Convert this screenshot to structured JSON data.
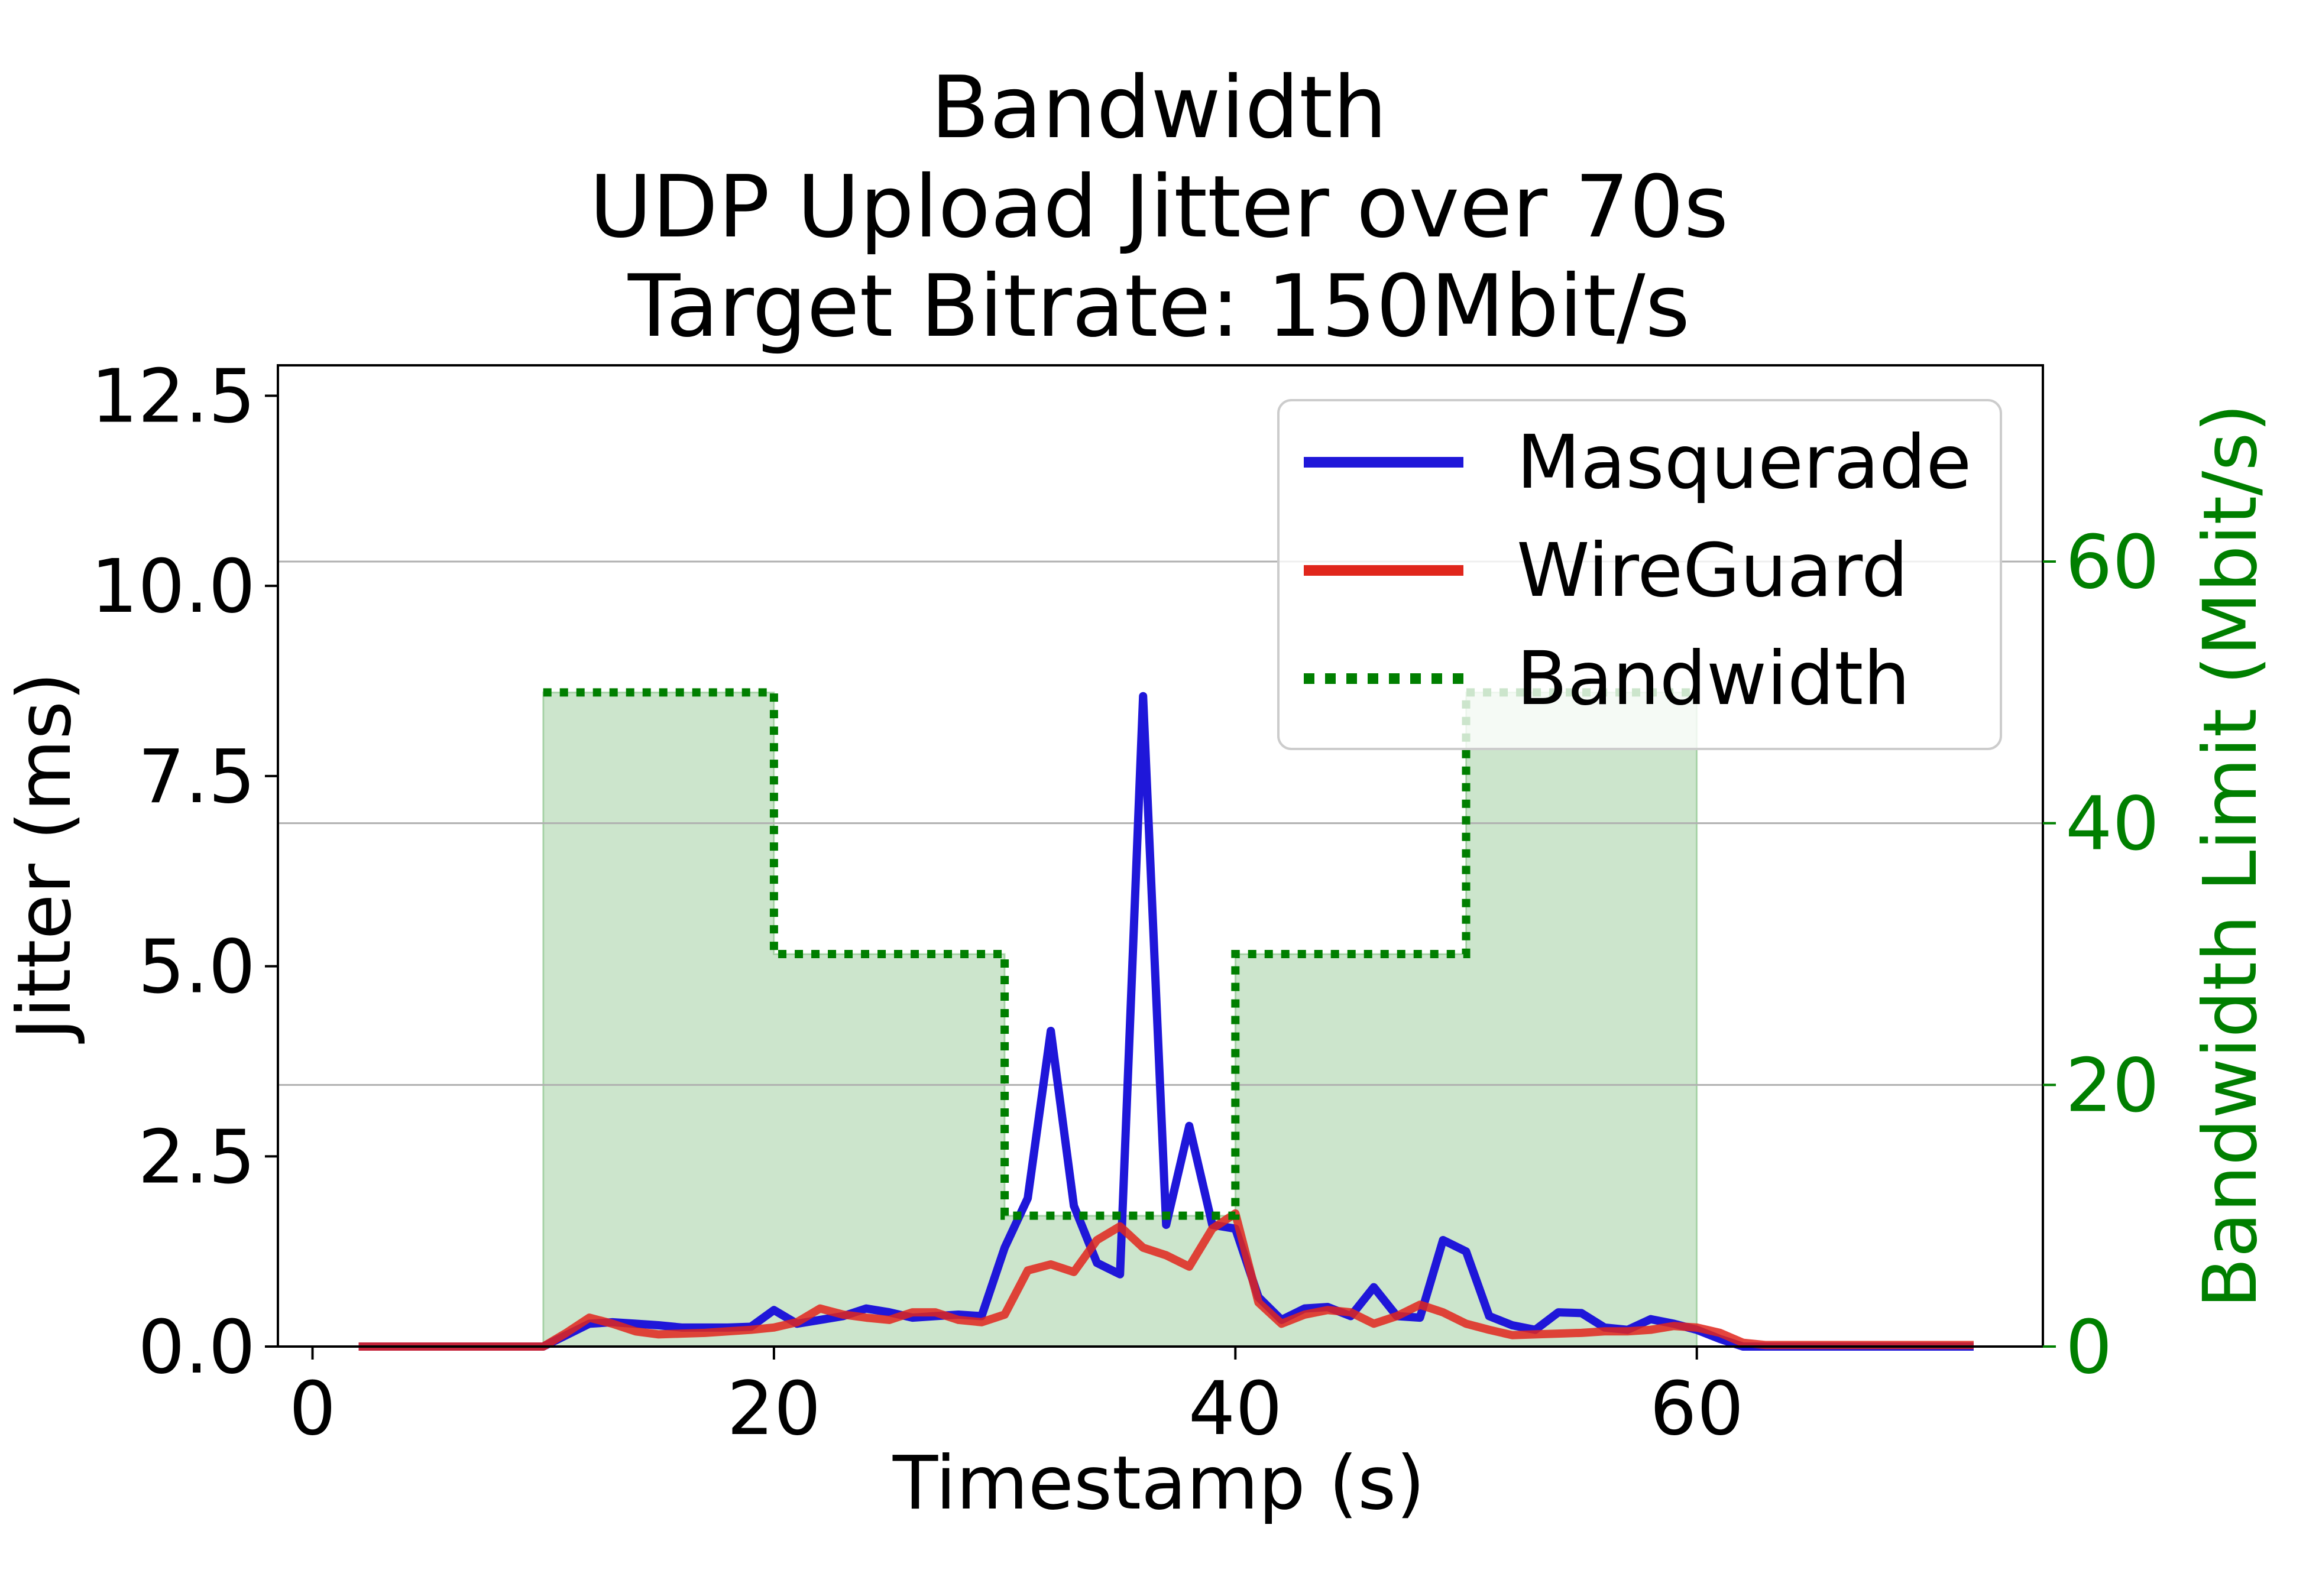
{
  "chart_data": {
    "type": "line",
    "title": [
      "Bandwidth",
      "UDP Upload Jitter over 70s",
      "Target Bitrate: 150Mbit/s"
    ],
    "xlabel": "Timestamp (s)",
    "ylabel": "Jitter (ms)",
    "y2label": "Bandwidth Limit (Mbit/s)",
    "xlim": [
      -1.5,
      75
    ],
    "ylim": [
      0,
      12.9
    ],
    "y2lim": [
      0,
      75
    ],
    "x_ticks": [
      0,
      20,
      40,
      60
    ],
    "y_ticks": [
      0.0,
      2.5,
      5.0,
      7.5,
      10.0,
      12.5
    ],
    "y_tick_labels": [
      "0.0",
      "2.5",
      "5.0",
      "7.5",
      "10.0",
      "12.5"
    ],
    "y2_ticks": [
      0,
      20,
      40,
      60
    ],
    "grid": "y2 major only",
    "legend_position": "top-right",
    "colors": {
      "masquerade": "#1f17d9",
      "wireguard": "#e0261c",
      "bandwidth": "#007f00",
      "bandwidth_fill": "#cce5cc",
      "y2_axis": "#007f00"
    },
    "series": [
      {
        "name": "Masquerade",
        "axis": "left",
        "x": [
          2,
          3,
          4,
          5,
          6,
          7,
          8,
          9,
          10,
          11,
          12,
          13,
          14,
          15,
          16,
          17,
          18,
          19,
          20,
          21,
          22,
          23,
          24,
          25,
          26,
          27,
          28,
          29,
          30,
          31,
          32,
          33,
          34,
          35,
          36,
          37,
          38,
          39,
          40,
          41,
          42,
          43,
          44,
          45,
          46,
          47,
          48,
          49,
          50,
          51,
          52,
          53,
          54,
          55,
          56,
          57,
          58,
          59,
          60,
          61,
          62,
          63,
          64,
          65,
          66,
          67,
          68,
          69,
          70,
          71,
          72
        ],
        "y": [
          0,
          0,
          0,
          0,
          0,
          0,
          0,
          0,
          0,
          0.15,
          0.3,
          0.32,
          0.3,
          0.28,
          0.25,
          0.25,
          0.25,
          0.26,
          0.48,
          0.3,
          0.35,
          0.4,
          0.5,
          0.45,
          0.38,
          0.4,
          0.42,
          0.4,
          1.3,
          1.95,
          4.15,
          1.85,
          1.1,
          0.95,
          8.55,
          1.6,
          2.9,
          1.6,
          1.55,
          0.65,
          0.35,
          0.5,
          0.52,
          0.4,
          0.78,
          0.4,
          0.38,
          1.4,
          1.25,
          0.4,
          0.28,
          0.22,
          0.45,
          0.44,
          0.25,
          0.22,
          0.36,
          0.3,
          0.22,
          0.1,
          0,
          0,
          0,
          0,
          0,
          0,
          0,
          0,
          0,
          0,
          0
        ]
      },
      {
        "name": "WireGuard",
        "axis": "left",
        "x": [
          2,
          3,
          4,
          5,
          6,
          7,
          8,
          9,
          10,
          11,
          12,
          13,
          14,
          15,
          16,
          17,
          18,
          19,
          20,
          21,
          22,
          23,
          24,
          25,
          26,
          27,
          28,
          29,
          30,
          31,
          32,
          33,
          34,
          35,
          36,
          37,
          38,
          39,
          40,
          41,
          42,
          43,
          44,
          45,
          46,
          47,
          48,
          49,
          50,
          51,
          52,
          53,
          54,
          55,
          56,
          57,
          58,
          59,
          60,
          61,
          62,
          63,
          64,
          65,
          66,
          67,
          68,
          69,
          70,
          71,
          72
        ],
        "y": [
          0,
          0,
          0,
          0,
          0,
          0,
          0,
          0,
          0,
          0.18,
          0.38,
          0.3,
          0.2,
          0.16,
          0.17,
          0.18,
          0.2,
          0.22,
          0.25,
          0.32,
          0.5,
          0.42,
          0.38,
          0.35,
          0.45,
          0.45,
          0.35,
          0.32,
          0.42,
          1.0,
          1.08,
          0.98,
          1.4,
          1.58,
          1.3,
          1.2,
          1.05,
          1.55,
          1.75,
          0.58,
          0.3,
          0.42,
          0.48,
          0.45,
          0.3,
          0.4,
          0.55,
          0.45,
          0.3,
          0.22,
          0.15,
          0.16,
          0.17,
          0.18,
          0.2,
          0.2,
          0.22,
          0.27,
          0.25,
          0.18,
          0.05,
          0.02,
          0.02,
          0.02,
          0.02,
          0.02,
          0.02,
          0.02,
          0.02,
          0.02,
          0.02
        ]
      },
      {
        "name": "Bandwidth",
        "axis": "right",
        "style": "dotted-step",
        "x": [
          10,
          20,
          20,
          30,
          30,
          40,
          40,
          50,
          50,
          60
        ],
        "y": [
          50,
          50,
          30,
          30,
          10,
          10,
          30,
          30,
          50,
          50
        ]
      }
    ]
  }
}
